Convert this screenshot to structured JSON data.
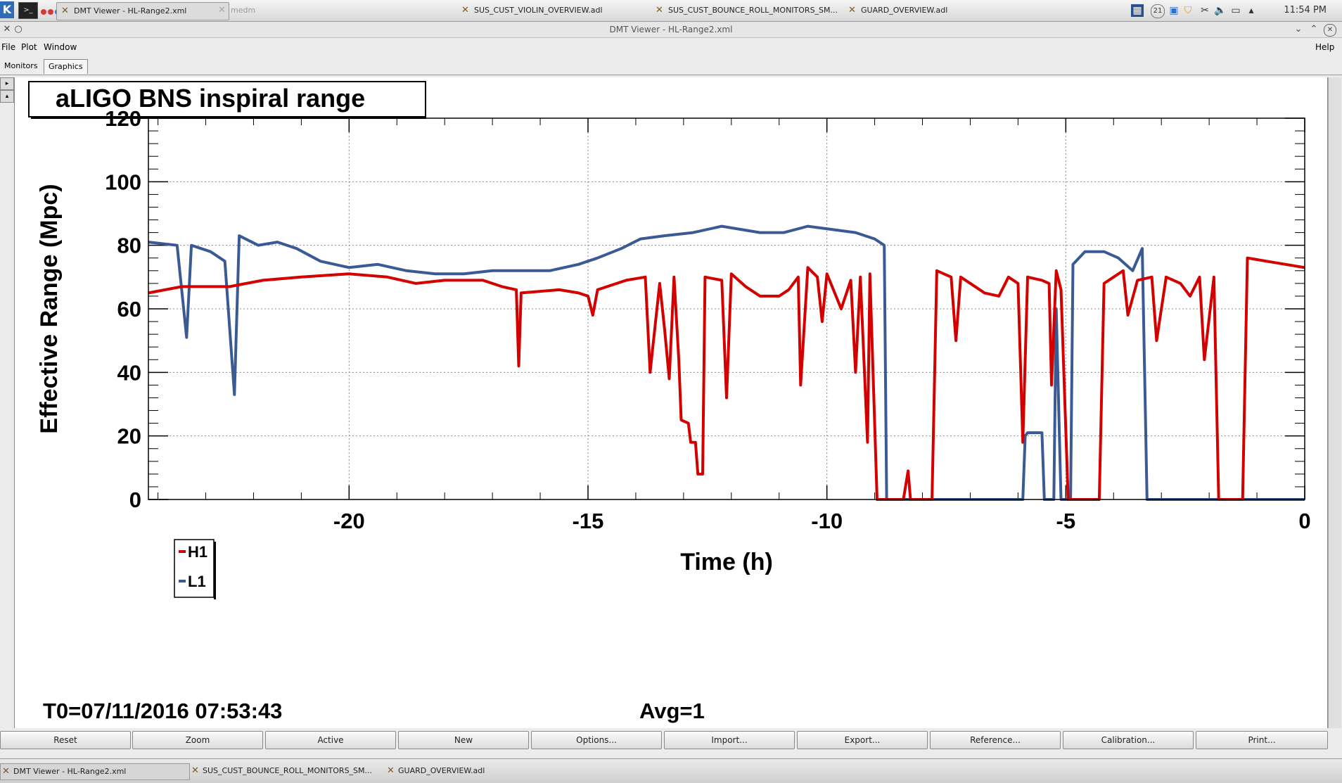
{
  "taskbar": {
    "tasks": [
      {
        "label": "DMT Viewer - HL-Range2.xml",
        "active": true
      },
      {
        "label": "medm",
        "dim": true
      },
      {
        "label": "SUS_CUST_VIOLIN_OVERVIEW.adl"
      },
      {
        "label": "SUS_CUST_BOUNCE_ROLL_MONITORS_SM..."
      },
      {
        "label": "GUARD_OVERVIEW.adl"
      }
    ],
    "tray_badge": "21",
    "clock": "11:54 PM"
  },
  "window": {
    "title": "DMT Viewer - HL-Range2.xml"
  },
  "menu": {
    "file": "File",
    "plot": "Plot",
    "window": "Window",
    "help": "Help"
  },
  "tabs": {
    "monitors": "Monitors",
    "graphics": "Graphics"
  },
  "plot": {
    "t0_label": "T0=07/11/2016 07:53:43",
    "avg_label": "Avg=1"
  },
  "chart_data": {
    "type": "line",
    "title": "aLIGO BNS inspiral range",
    "xlabel": "Time (h)",
    "ylabel": "Effective Range (Mpc)",
    "xlim": [
      -24.2,
      0
    ],
    "ylim": [
      0,
      120
    ],
    "x_ticks": [
      -20,
      -15,
      -10,
      -5,
      0
    ],
    "y_ticks": [
      0,
      20,
      40,
      60,
      80,
      100,
      120
    ],
    "grid": true,
    "legend_position": "bottom-left",
    "series": [
      {
        "name": "H1",
        "color": "#d40000",
        "points": [
          [
            -24.2,
            65
          ],
          [
            -23.5,
            67
          ],
          [
            -22.5,
            67
          ],
          [
            -21.8,
            69
          ],
          [
            -21,
            70
          ],
          [
            -20,
            71
          ],
          [
            -19.2,
            70
          ],
          [
            -18.6,
            68
          ],
          [
            -18,
            69
          ],
          [
            -17.2,
            69
          ],
          [
            -16.8,
            67
          ],
          [
            -16.5,
            66
          ],
          [
            -16.45,
            42
          ],
          [
            -16.4,
            65
          ],
          [
            -15.6,
            66
          ],
          [
            -15.2,
            65
          ],
          [
            -15,
            64
          ],
          [
            -14.9,
            58
          ],
          [
            -14.8,
            66
          ],
          [
            -14.2,
            69
          ],
          [
            -13.8,
            70
          ],
          [
            -13.7,
            40
          ],
          [
            -13.5,
            68
          ],
          [
            -13.4,
            54
          ],
          [
            -13.3,
            38
          ],
          [
            -13.2,
            70
          ],
          [
            -13.1,
            44
          ],
          [
            -13.05,
            25
          ],
          [
            -12.9,
            24
          ],
          [
            -12.85,
            18
          ],
          [
            -12.75,
            18
          ],
          [
            -12.7,
            8
          ],
          [
            -12.6,
            8
          ],
          [
            -12.55,
            70
          ],
          [
            -12.2,
            69
          ],
          [
            -12.1,
            32
          ],
          [
            -12,
            71
          ],
          [
            -11.7,
            67
          ],
          [
            -11.4,
            64
          ],
          [
            -11,
            64
          ],
          [
            -10.8,
            66
          ],
          [
            -10.6,
            70
          ],
          [
            -10.55,
            36
          ],
          [
            -10.4,
            73
          ],
          [
            -10.2,
            70
          ],
          [
            -10.1,
            56
          ],
          [
            -10,
            71
          ],
          [
            -9.7,
            60
          ],
          [
            -9.5,
            69
          ],
          [
            -9.4,
            40
          ],
          [
            -9.3,
            70
          ],
          [
            -9.15,
            18
          ],
          [
            -9.1,
            71
          ],
          [
            -8.95,
            0
          ],
          [
            -8.4,
            0
          ],
          [
            -8.3,
            9
          ],
          [
            -8.25,
            0
          ],
          [
            -7.8,
            0
          ],
          [
            -7.7,
            72
          ],
          [
            -7.4,
            70
          ],
          [
            -7.3,
            50
          ],
          [
            -7.2,
            70
          ],
          [
            -6.7,
            65
          ],
          [
            -6.4,
            64
          ],
          [
            -6.2,
            70
          ],
          [
            -6.0,
            68
          ],
          [
            -5.9,
            18
          ],
          [
            -5.8,
            70
          ],
          [
            -5.5,
            69
          ],
          [
            -5.35,
            68
          ],
          [
            -5.3,
            36
          ],
          [
            -5.2,
            72
          ],
          [
            -5.1,
            66
          ],
          [
            -4.95,
            0
          ],
          [
            -4.3,
            0
          ],
          [
            -4.2,
            68
          ],
          [
            -4.0,
            70
          ],
          [
            -3.8,
            72
          ],
          [
            -3.7,
            58
          ],
          [
            -3.5,
            69
          ],
          [
            -3.2,
            70
          ],
          [
            -3.1,
            50
          ],
          [
            -2.9,
            70
          ],
          [
            -2.6,
            68
          ],
          [
            -2.4,
            64
          ],
          [
            -2.2,
            70
          ],
          [
            -2.1,
            44
          ],
          [
            -1.9,
            70
          ],
          [
            -1.8,
            0
          ],
          [
            -1.3,
            0
          ],
          [
            -1.2,
            76
          ],
          [
            -0.8,
            75
          ],
          [
            -0.4,
            74
          ],
          [
            0,
            73
          ]
        ]
      },
      {
        "name": "L1",
        "color": "#3a5a96",
        "points": [
          [
            -24.2,
            81
          ],
          [
            -23.6,
            80
          ],
          [
            -23.4,
            51
          ],
          [
            -23.3,
            80
          ],
          [
            -22.9,
            78
          ],
          [
            -22.6,
            75
          ],
          [
            -22.4,
            33
          ],
          [
            -22.3,
            83
          ],
          [
            -21.9,
            80
          ],
          [
            -21.5,
            81
          ],
          [
            -21.1,
            79
          ],
          [
            -20.6,
            75
          ],
          [
            -20,
            73
          ],
          [
            -19.4,
            74
          ],
          [
            -18.8,
            72
          ],
          [
            -18.2,
            71
          ],
          [
            -17.6,
            71
          ],
          [
            -17,
            72
          ],
          [
            -16.4,
            72
          ],
          [
            -15.8,
            72
          ],
          [
            -15.2,
            74
          ],
          [
            -14.8,
            76
          ],
          [
            -14.3,
            79
          ],
          [
            -13.9,
            82
          ],
          [
            -13.4,
            83
          ],
          [
            -12.8,
            84
          ],
          [
            -12.2,
            86
          ],
          [
            -11.8,
            85
          ],
          [
            -11.4,
            84
          ],
          [
            -10.9,
            84
          ],
          [
            -10.4,
            86
          ],
          [
            -9.9,
            85
          ],
          [
            -9.4,
            84
          ],
          [
            -9.0,
            82
          ],
          [
            -8.8,
            80
          ],
          [
            -8.75,
            0
          ],
          [
            -5.9,
            0
          ],
          [
            -5.85,
            20
          ],
          [
            -5.8,
            21
          ],
          [
            -5.5,
            21
          ],
          [
            -5.45,
            0
          ],
          [
            -5.25,
            0
          ],
          [
            -5.2,
            60
          ],
          [
            -5.1,
            0
          ],
          [
            -4.9,
            0
          ],
          [
            -4.85,
            74
          ],
          [
            -4.6,
            78
          ],
          [
            -4.2,
            78
          ],
          [
            -3.9,
            76
          ],
          [
            -3.6,
            72
          ],
          [
            -3.4,
            79
          ],
          [
            -3.3,
            0
          ],
          [
            0,
            0
          ]
        ]
      }
    ]
  },
  "buttons": {
    "reset": "Reset",
    "zoom": "Zoom",
    "active": "Active",
    "new": "New",
    "options": "Options...",
    "import": "Import...",
    "export": "Export...",
    "reference": "Reference...",
    "calibration": "Calibration...",
    "print": "Print..."
  },
  "bottom_taskbar": {
    "tasks": [
      {
        "label": "DMT Viewer - HL-Range2.xml"
      },
      {
        "label": "SUS_CUST_BOUNCE_ROLL_MONITORS_SM..."
      },
      {
        "label": "GUARD_OVERVIEW.adl"
      }
    ]
  }
}
